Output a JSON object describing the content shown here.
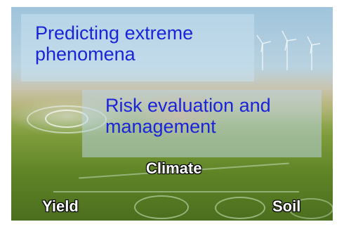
{
  "image": {
    "boxes": [
      {
        "text_lines": [
          "Predicting extreme",
          "phenomena"
        ]
      },
      {
        "text_lines": [
          "Risk evaluation and",
          "management"
        ]
      }
    ],
    "tags": {
      "climate": "Climate",
      "yield": "Yield",
      "soil": "Soil"
    }
  }
}
